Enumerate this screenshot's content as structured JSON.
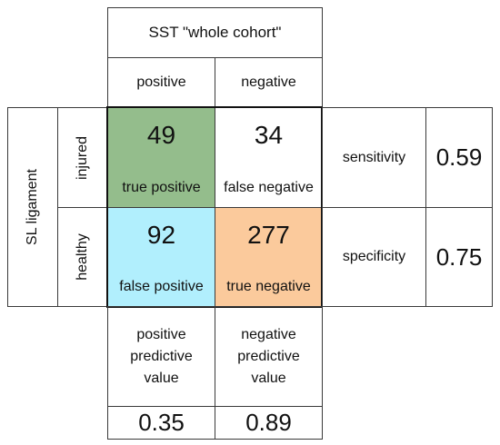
{
  "header": {
    "title": "SST \"whole cohort\"",
    "positive": "positive",
    "negative": "negative"
  },
  "rows": {
    "group_label": "SL ligament",
    "injured": "injured",
    "healthy": "healthy"
  },
  "matrix": {
    "tp": {
      "value": "49",
      "label": "true positive",
      "color": "#94bd8c"
    },
    "fn": {
      "value": "34",
      "label": "false negative",
      "color": "#ffffff"
    },
    "fp": {
      "value": "92",
      "label": "false positive",
      "color": "#b1effd"
    },
    "tn": {
      "value": "277",
      "label": "true negative",
      "color": "#fbca9c"
    }
  },
  "metrics": {
    "sensitivity_label": "sensitivity",
    "sensitivity_value": "0.59",
    "specificity_label": "specificity",
    "specificity_value": "0.75"
  },
  "predictive": {
    "ppv_line1": "positive",
    "ppv_line2": "predictive",
    "ppv_line3": "value",
    "ppv_value": "0.35",
    "npv_line1": "negative",
    "npv_line2": "predictive",
    "npv_line3": "value",
    "npv_value": "0.89"
  }
}
